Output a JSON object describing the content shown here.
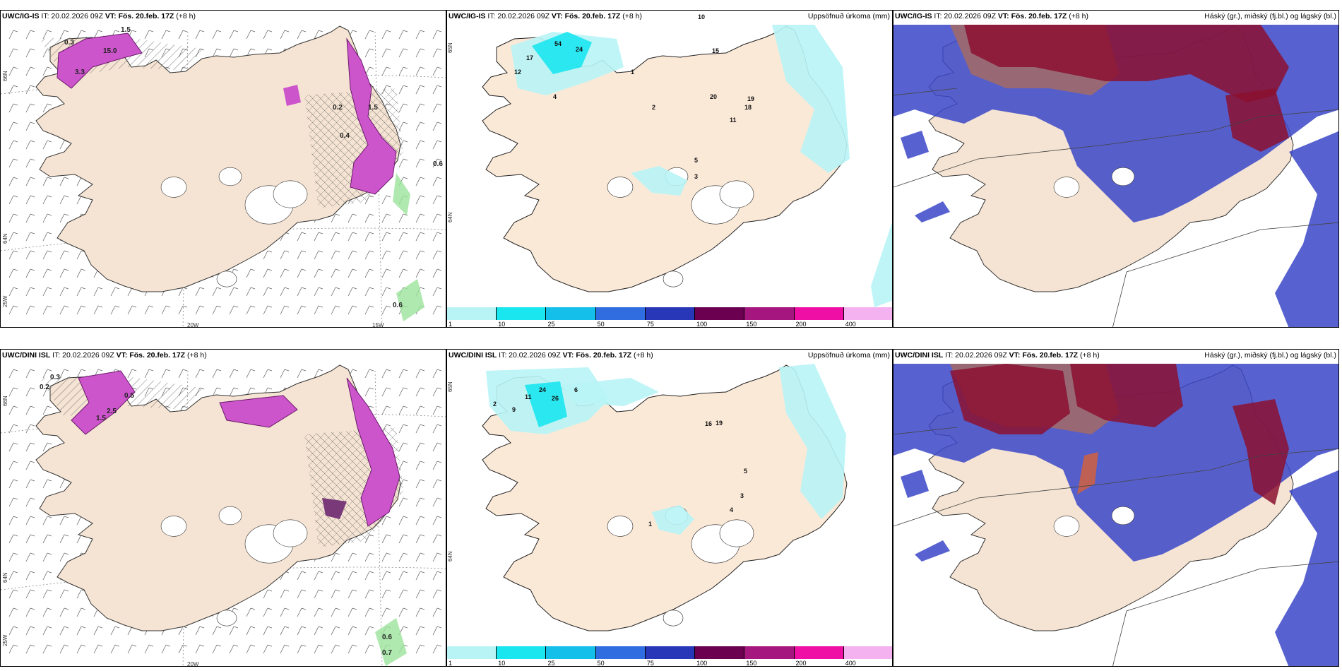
{
  "panels": [
    {
      "model": "UWC/IG-IS",
      "it": " IT: 20.02.2026 09Z ",
      "vt_label": "VT:",
      "vt_value": " Fös. 20.feb. 17Z",
      "lead": " (+8 h)",
      "title": "",
      "axis_labels": [
        "66N",
        "64N",
        "25W",
        "20W",
        "15W"
      ],
      "values": [
        "0.3",
        "1.5",
        "15.0",
        "0.6",
        "0.6",
        "0.2",
        "0.4",
        "1.5",
        "3.3"
      ]
    },
    {
      "model": "UWC/IG-IS",
      "it": " IT: 20.02.2026 09Z ",
      "vt_label": "VT:",
      "vt_value": " Fös. 20.feb. 17Z",
      "lead": " (+8 h)",
      "title": "Uppsöfnuð úrkoma (mm)",
      "axis_labels": [
        "65N",
        "64N"
      ],
      "values": [
        "54",
        "24",
        "17",
        "12",
        "4",
        "10",
        "20",
        "15",
        "19",
        "18",
        "11",
        "3",
        "5",
        "2",
        "1"
      ]
    },
    {
      "model": "UWC/IG-IS",
      "it": " IT: 20.02.2026 09Z ",
      "vt_label": "VT:",
      "vt_value": " Fös. 20.feb. 17Z",
      "lead": " (+8 h)",
      "title": "Háský (gr.), miðský (fj.bl.) og lágský (bl.)",
      "axis_labels": [],
      "values": []
    },
    {
      "model": "UWC/DINI ISL",
      "it": " IT: 20.02.2026 09Z ",
      "vt_label": "VT:",
      "vt_value": " Fös. 20.feb. 17Z",
      "lead": " (+8 h)",
      "title": "",
      "axis_labels": [
        "66N",
        "64N",
        "25W",
        "20W"
      ],
      "values": [
        "0.3",
        "0.2",
        "0.5",
        "2.5",
        "1.5",
        "0.6",
        "0.7"
      ]
    },
    {
      "model": "UWC/DINI ISL",
      "it": " IT: 20.02.2026 09Z ",
      "vt_label": "VT:",
      "vt_value": " Fös. 20.feb. 17Z",
      "lead": " (+8 h)",
      "title": "Uppsöfnuð úrkoma (mm)",
      "axis_labels": [
        "65N",
        "64N"
      ],
      "values": [
        "24",
        "26",
        "11",
        "9",
        "6",
        "2",
        "16",
        "19",
        "5",
        "3",
        "4",
        "1"
      ]
    },
    {
      "model": "UWC/DINI ISL",
      "it": " IT: 20.02.2026 09Z ",
      "vt_label": "VT:",
      "vt_value": " Fös. 20.feb. 17Z",
      "lead": " (+8 h)",
      "title": "Háský (gr.), miðský (fj.bl.) og lágský (bl.)",
      "axis_labels": [],
      "values": []
    }
  ],
  "colorbar": {
    "labels": [
      "1",
      "10",
      "25",
      "50",
      "75",
      "100",
      "150",
      "200",
      "400"
    ],
    "colors": [
      "#b8f4f6",
      "#19e6ef",
      "#14c0ea",
      "#2f6de0",
      "#2837b8",
      "#6b0050",
      "#a5167e",
      "#ef0fa4",
      "#f4b2f0"
    ]
  },
  "colors": {
    "land": "#f5e4d3",
    "precip_light": "#b8f4f6",
    "precip_mid": "#19e6ef",
    "snow_purple": "#cc55cc",
    "cloud_high": "#8b1030",
    "cloud_mid": "#a06a6a",
    "cloud_low": "#3a46c8"
  }
}
